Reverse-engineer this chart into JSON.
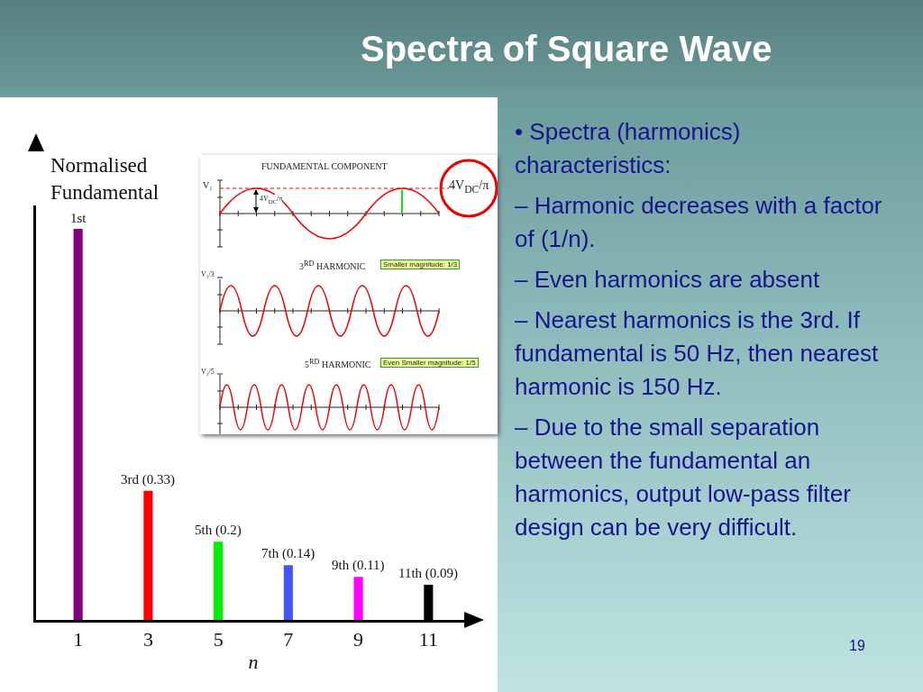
{
  "chart_data": {
    "type": "bar",
    "title": "Spectra of Square Wave",
    "ylabel": "Normalised Fundamental",
    "xlabel": "n",
    "categories": [
      "1",
      "3",
      "5",
      "7",
      "9",
      "11"
    ],
    "values": [
      1,
      0.33,
      0.2,
      0.14,
      0.11,
      0.09
    ],
    "value_labels": [
      "1st",
      "3rd (0.33)",
      "5th (0.2)",
      "7th (0.14)",
      "9th (0.11)",
      "11th (0.09)"
    ],
    "colors": [
      "#800080",
      "#ff0000",
      "#00ee00",
      "#4455ff",
      "#ff00ff",
      "#000000"
    ],
    "tick_labels": "x",
    "grid": false,
    "annotations": [
      "• Spectra (harmonics) characteristics:",
      "– Harmonic decreases with a factor of (1/n).",
      "– Even harmonics are absent",
      "– Nearest harmonics is the 3rd. If fundamental is 50 Hz, then nearest harmonic is 150 Hz.",
      "– Due to the small separation between the fundamental an harmonics, output low-pass filter design can be very difficult.",
      "FUNDAMENTAL COMPONENT",
      "V₁",
      "4V$_{DC}$/π",
      "4V$_{DC}$/π",
      "3$^{RD}$ HARMONIC",
      "Smaller magnitude: 1/3",
      "V₁/3",
      "5$^{RD}$ HARMONIC",
      "Even Smaller magnitude: 1/5",
      "V₁/5",
      "19"
    ]
  }
}
